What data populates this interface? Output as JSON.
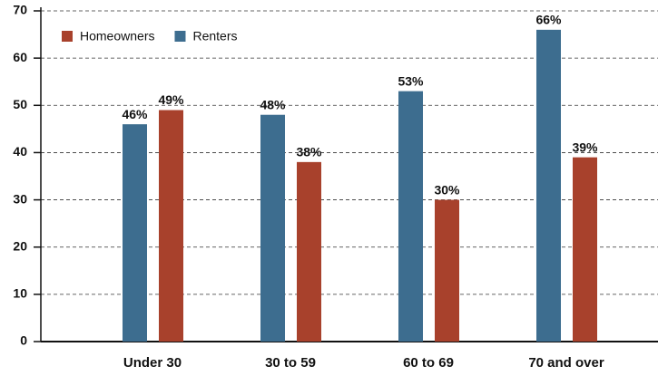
{
  "chart_data": {
    "type": "bar",
    "categories": [
      "Under 30",
      "30 to 59",
      "60 to 69",
      "70 and over"
    ],
    "series": [
      {
        "name": "Homeowners",
        "color": "#a8412c",
        "values": [
          49,
          38,
          30,
          39
        ],
        "value_labels": [
          "49%",
          "38%",
          "30%",
          "39%"
        ]
      },
      {
        "name": "Renters",
        "color": "#3d6d8f",
        "values": [
          46,
          48,
          53,
          66
        ],
        "value_labels": [
          "46%",
          "48%",
          "53%",
          "66%"
        ]
      }
    ],
    "ylim": [
      0,
      70
    ],
    "yticks": [
      0,
      10,
      20,
      30,
      40,
      50,
      60,
      70
    ],
    "grid": true,
    "legend": "top-left"
  }
}
